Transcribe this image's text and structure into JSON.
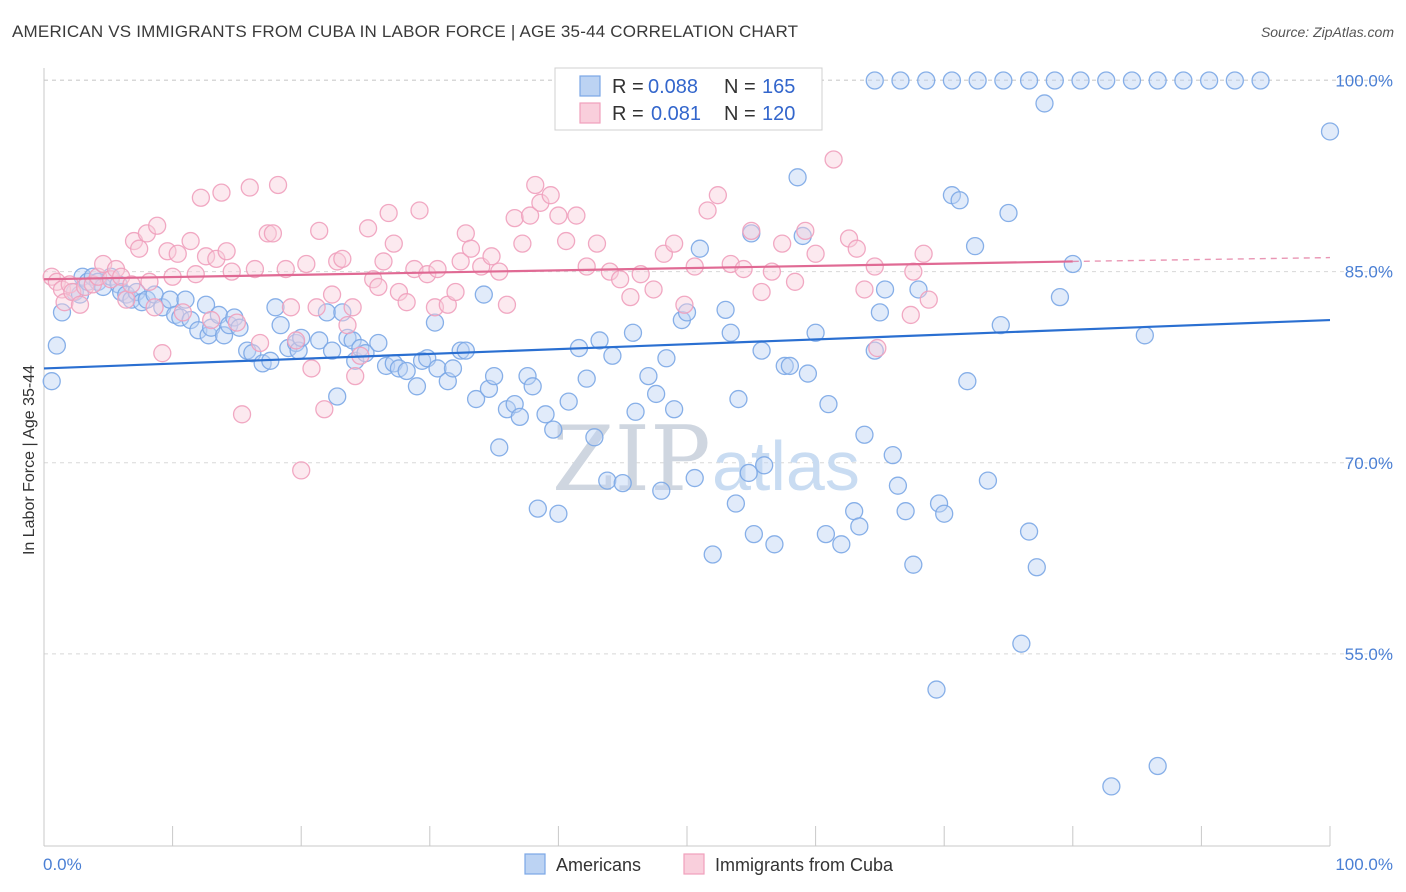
{
  "header": {
    "title": "AMERICAN VS IMMIGRANTS FROM CUBA IN LABOR FORCE | AGE 35-44 CORRELATION CHART",
    "source": "Source: ZipAtlas.com"
  },
  "watermark": {
    "zip": "ZIP",
    "atlas": "atlas"
  },
  "chart_data": {
    "type": "scatter",
    "title": "AMERICAN VS IMMIGRANTS FROM CUBA IN LABOR FORCE | AGE 35-44 CORRELATION CHART",
    "xlabel": "",
    "ylabel": "In Labor Force | Age 35-44",
    "xlim": [
      0,
      100
    ],
    "ylim": [
      40,
      102
    ],
    "x_tick_labels": [
      "0.0%",
      "100.0%"
    ],
    "y_ticks": [
      55,
      70,
      85,
      100
    ],
    "y_tick_labels": [
      "55.0%",
      "70.0%",
      "85.0%",
      "100.0%"
    ],
    "grid": true,
    "legend_position": "bottom",
    "stats": [
      {
        "r_label": "R =",
        "r": "0.088",
        "n_label": "N =",
        "n": "165"
      },
      {
        "r_label": "R =",
        "r": "0.081",
        "n_label": "N =",
        "n": "120"
      }
    ],
    "series": [
      {
        "name": "Americans",
        "color": "#7ba7e6",
        "fill": "#bcd3f3",
        "trend_color": "#2a6fd1",
        "trend": [
          [
            0,
            77.4
          ],
          [
            100,
            81.2
          ]
        ],
        "points": [
          [
            0.6,
            76.4
          ],
          [
            1,
            79.2
          ],
          [
            1.4,
            81.8
          ],
          [
            2.4,
            83.4
          ],
          [
            2.8,
            83.2
          ],
          [
            3,
            84.6
          ],
          [
            3.4,
            84.2
          ],
          [
            3.8,
            84.6
          ],
          [
            4.2,
            84.2
          ],
          [
            4.6,
            83.8
          ],
          [
            5.2,
            84.6
          ],
          [
            5.8,
            84
          ],
          [
            6,
            83.4
          ],
          [
            6.4,
            83.2
          ],
          [
            6.8,
            82.8
          ],
          [
            7.2,
            83.4
          ],
          [
            7.6,
            82.6
          ],
          [
            8,
            82.8
          ],
          [
            8.6,
            83.2
          ],
          [
            9.2,
            82.2
          ],
          [
            9.8,
            82.8
          ],
          [
            10.2,
            81.6
          ],
          [
            10.6,
            81.4
          ],
          [
            11,
            82.8
          ],
          [
            11.4,
            81.2
          ],
          [
            12,
            80.4
          ],
          [
            12.6,
            82.4
          ],
          [
            12.8,
            80
          ],
          [
            13,
            80.6
          ],
          [
            13.6,
            81.6
          ],
          [
            14,
            80
          ],
          [
            14.4,
            80.8
          ],
          [
            14.8,
            81.4
          ],
          [
            15.2,
            80.6
          ],
          [
            15.8,
            78.8
          ],
          [
            16.2,
            78.6
          ],
          [
            17,
            77.8
          ],
          [
            17.6,
            78
          ],
          [
            18,
            82.2
          ],
          [
            18.4,
            80.8
          ],
          [
            19,
            79
          ],
          [
            19.6,
            79.4
          ],
          [
            19.8,
            78.8
          ],
          [
            20,
            79.8
          ],
          [
            21.4,
            79.6
          ],
          [
            22,
            81.8
          ],
          [
            22.4,
            78.8
          ],
          [
            22.8,
            75.2
          ],
          [
            23.2,
            81.8
          ],
          [
            23.6,
            79.8
          ],
          [
            24,
            79.6
          ],
          [
            24.2,
            78
          ],
          [
            24.6,
            79
          ],
          [
            25,
            78.6
          ],
          [
            26,
            79.4
          ],
          [
            26.6,
            77.6
          ],
          [
            27.2,
            77.8
          ],
          [
            27.6,
            77.4
          ],
          [
            28.2,
            77.2
          ],
          [
            29,
            76
          ],
          [
            29.4,
            78
          ],
          [
            29.8,
            78.2
          ],
          [
            30.4,
            81
          ],
          [
            30.6,
            77.4
          ],
          [
            31.4,
            76.4
          ],
          [
            31.8,
            77.4
          ],
          [
            32.4,
            78.8
          ],
          [
            32.8,
            78.8
          ],
          [
            33.6,
            75
          ],
          [
            34.2,
            83.2
          ],
          [
            34.6,
            75.8
          ],
          [
            35,
            76.8
          ],
          [
            35.4,
            71.2
          ],
          [
            36,
            74.2
          ],
          [
            36.6,
            74.6
          ],
          [
            37,
            73.6
          ],
          [
            37.6,
            76.8
          ],
          [
            38,
            76
          ],
          [
            38.4,
            66.4
          ],
          [
            39,
            73.8
          ],
          [
            39.6,
            72.6
          ],
          [
            40,
            66
          ],
          [
            40.8,
            74.8
          ],
          [
            41.6,
            79
          ],
          [
            42.2,
            76.6
          ],
          [
            42.8,
            72
          ],
          [
            43.2,
            79.6
          ],
          [
            43.8,
            68.6
          ],
          [
            44.2,
            78.4
          ],
          [
            45,
            68.4
          ],
          [
            45.8,
            80.2
          ],
          [
            46,
            74
          ],
          [
            47,
            76.8
          ],
          [
            47.6,
            75.4
          ],
          [
            48,
            67.8
          ],
          [
            48.4,
            78.2
          ],
          [
            49,
            74.2
          ],
          [
            49.6,
            81.2
          ],
          [
            50,
            81.8
          ],
          [
            50.6,
            68.8
          ],
          [
            51,
            86.8
          ],
          [
            52,
            62.8
          ],
          [
            53,
            82
          ],
          [
            53.4,
            80.2
          ],
          [
            53.8,
            66.8
          ],
          [
            54,
            75
          ],
          [
            54.8,
            69.2
          ],
          [
            55,
            88
          ],
          [
            55.2,
            64.4
          ],
          [
            55.8,
            78.8
          ],
          [
            56,
            69.8
          ],
          [
            56.8,
            63.6
          ],
          [
            57.6,
            77.6
          ],
          [
            58,
            77.6
          ],
          [
            58.6,
            92.4
          ],
          [
            59,
            87.8
          ],
          [
            59.4,
            77
          ],
          [
            60,
            80.2
          ],
          [
            60.8,
            64.4
          ],
          [
            61,
            74.6
          ],
          [
            62,
            63.6
          ],
          [
            63,
            66.2
          ],
          [
            63.4,
            65
          ],
          [
            63.8,
            72.2
          ],
          [
            64.6,
            78.8
          ],
          [
            65,
            81.8
          ],
          [
            65.4,
            83.6
          ],
          [
            66,
            70.6
          ],
          [
            66.4,
            68.2
          ],
          [
            67,
            66.2
          ],
          [
            67.6,
            62
          ],
          [
            68,
            83.6
          ],
          [
            69.4,
            52.2
          ],
          [
            69.6,
            66.8
          ],
          [
            70,
            66
          ],
          [
            70.6,
            91
          ],
          [
            71.2,
            90.6
          ],
          [
            71.8,
            76.4
          ],
          [
            72.4,
            87
          ],
          [
            73.4,
            68.6
          ],
          [
            74.4,
            80.8
          ],
          [
            75,
            89.6
          ],
          [
            76,
            55.8
          ],
          [
            76.6,
            64.6
          ],
          [
            77.2,
            61.8
          ],
          [
            77.8,
            98.2
          ],
          [
            79,
            83
          ],
          [
            80,
            85.6
          ],
          [
            83,
            44.6
          ],
          [
            85.6,
            80
          ],
          [
            86.6,
            46.2
          ],
          [
            100,
            96
          ],
          [
            64.6,
            100
          ],
          [
            66.6,
            100
          ],
          [
            68.6,
            100
          ],
          [
            70.6,
            100
          ],
          [
            72.6,
            100
          ],
          [
            74.6,
            100
          ],
          [
            76.6,
            100
          ],
          [
            78.6,
            100
          ],
          [
            80.6,
            100
          ],
          [
            82.6,
            100
          ],
          [
            84.6,
            100
          ],
          [
            86.6,
            100
          ],
          [
            88.6,
            100
          ],
          [
            90.6,
            100
          ],
          [
            92.6,
            100
          ],
          [
            94.6,
            100
          ]
        ]
      },
      {
        "name": "Immigrants from Cuba",
        "color": "#f0a0bc",
        "fill": "#f9cfdc",
        "trend_color": "#e06a94",
        "trend": [
          [
            0,
            84.4
          ],
          [
            80,
            85.8
          ]
        ],
        "trend_dash": [
          [
            80,
            85.8
          ],
          [
            100,
            86.1
          ]
        ],
        "points": [
          [
            0.6,
            84.6
          ],
          [
            1,
            84.2
          ],
          [
            1.4,
            83.6
          ],
          [
            1.6,
            82.6
          ],
          [
            2,
            84
          ],
          [
            2.2,
            83.4
          ],
          [
            2.8,
            82.4
          ],
          [
            3.2,
            83.8
          ],
          [
            3.8,
            84
          ],
          [
            4.2,
            84.6
          ],
          [
            4.6,
            85.6
          ],
          [
            5.2,
            84.4
          ],
          [
            5.6,
            85.2
          ],
          [
            6,
            84.6
          ],
          [
            6.4,
            82.8
          ],
          [
            6.8,
            84
          ],
          [
            7,
            87.4
          ],
          [
            7.4,
            86.8
          ],
          [
            8,
            88
          ],
          [
            8.2,
            84.2
          ],
          [
            8.6,
            82.2
          ],
          [
            8.8,
            88.6
          ],
          [
            9.2,
            78.6
          ],
          [
            9.6,
            86.6
          ],
          [
            10,
            84.6
          ],
          [
            10.4,
            86.4
          ],
          [
            10.8,
            81.8
          ],
          [
            11.4,
            87.4
          ],
          [
            11.8,
            84.8
          ],
          [
            12.2,
            90.8
          ],
          [
            12.6,
            86.2
          ],
          [
            13,
            81.2
          ],
          [
            13.4,
            86
          ],
          [
            13.8,
            91.2
          ],
          [
            14.2,
            86.6
          ],
          [
            14.6,
            85
          ],
          [
            15,
            81
          ],
          [
            15.4,
            73.8
          ],
          [
            16,
            91.6
          ],
          [
            16.4,
            85.2
          ],
          [
            16.8,
            79.4
          ],
          [
            17.4,
            88
          ],
          [
            17.8,
            88
          ],
          [
            18.2,
            91.8
          ],
          [
            18.8,
            85.2
          ],
          [
            19.2,
            82.2
          ],
          [
            19.6,
            79.6
          ],
          [
            20,
            69.4
          ],
          [
            20.4,
            85.6
          ],
          [
            20.8,
            77.4
          ],
          [
            21.2,
            82.2
          ],
          [
            21.4,
            88.2
          ],
          [
            21.8,
            74.2
          ],
          [
            22.4,
            83.2
          ],
          [
            22.8,
            85.8
          ],
          [
            23.2,
            86
          ],
          [
            23.6,
            80.8
          ],
          [
            24,
            82.2
          ],
          [
            24.2,
            76.8
          ],
          [
            24.6,
            78.4
          ],
          [
            25.2,
            88.4
          ],
          [
            25.6,
            84.4
          ],
          [
            26,
            83.8
          ],
          [
            26.4,
            85.8
          ],
          [
            26.8,
            89.6
          ],
          [
            27.2,
            87.2
          ],
          [
            27.6,
            83.4
          ],
          [
            28.2,
            82.6
          ],
          [
            28.8,
            85.2
          ],
          [
            29.2,
            89.8
          ],
          [
            29.8,
            84.8
          ],
          [
            30.4,
            82.2
          ],
          [
            30.6,
            85.2
          ],
          [
            31.4,
            82.4
          ],
          [
            32,
            83.4
          ],
          [
            32.4,
            85.8
          ],
          [
            32.8,
            88
          ],
          [
            33.2,
            86.8
          ],
          [
            34,
            85.4
          ],
          [
            34.8,
            86.2
          ],
          [
            35.4,
            85
          ],
          [
            36,
            82.4
          ],
          [
            36.6,
            89.2
          ],
          [
            37.2,
            87.2
          ],
          [
            37.8,
            89.4
          ],
          [
            38.2,
            91.8
          ],
          [
            38.6,
            90.4
          ],
          [
            39.4,
            91
          ],
          [
            40,
            89.4
          ],
          [
            40.6,
            87.4
          ],
          [
            41.4,
            89.4
          ],
          [
            42.2,
            85.4
          ],
          [
            43,
            87.2
          ],
          [
            44,
            85
          ],
          [
            44.8,
            84.4
          ],
          [
            45.6,
            83
          ],
          [
            46.4,
            84.8
          ],
          [
            47.4,
            83.6
          ],
          [
            48.2,
            86.4
          ],
          [
            49,
            87.2
          ],
          [
            49.8,
            82.4
          ],
          [
            50.6,
            85.4
          ],
          [
            51.6,
            89.8
          ],
          [
            52.4,
            91
          ],
          [
            53.4,
            85.6
          ],
          [
            54.4,
            85.2
          ],
          [
            55,
            88.2
          ],
          [
            55.8,
            83.4
          ],
          [
            56.6,
            85
          ],
          [
            57.4,
            87.2
          ],
          [
            58.4,
            84.2
          ],
          [
            59.2,
            88.2
          ],
          [
            60,
            86.4
          ],
          [
            61.4,
            93.8
          ],
          [
            62.6,
            87.6
          ],
          [
            63.2,
            86.8
          ],
          [
            63.8,
            83.6
          ],
          [
            64.6,
            85.4
          ],
          [
            64.8,
            79
          ],
          [
            67.4,
            81.6
          ],
          [
            67.6,
            85
          ],
          [
            68.4,
            86.4
          ],
          [
            68.8,
            82.8
          ]
        ]
      }
    ]
  }
}
